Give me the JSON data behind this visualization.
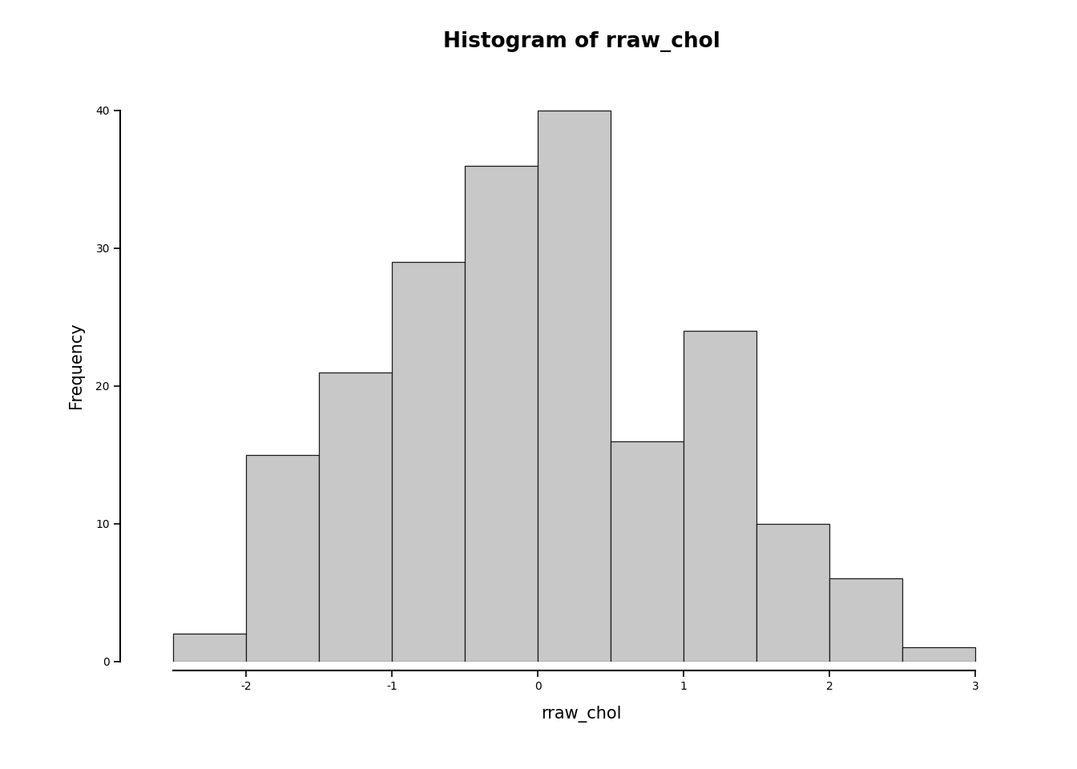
{
  "title": "Histogram of rraw_chol",
  "xlabel": "rraw_chol",
  "ylabel": "Frequency",
  "bar_edges": [
    -2.5,
    -2.0,
    -1.5,
    -1.0,
    -0.5,
    0.0,
    0.5,
    1.0,
    1.5,
    2.0,
    2.5,
    3.0
  ],
  "bar_heights": [
    2,
    15,
    21,
    29,
    36,
    40,
    16,
    24,
    10,
    6,
    1
  ],
  "bar_color": "#c8c8c8",
  "bar_edgecolor": "#1a1a1a",
  "xlim": [
    -2.8,
    3.4
  ],
  "ylim": [
    0,
    43
  ],
  "xticks": [
    -2,
    -1,
    0,
    1,
    2,
    3
  ],
  "yticks": [
    0,
    10,
    20,
    30,
    40
  ],
  "title_fontsize": 19,
  "title_fontweight": "bold",
  "label_fontsize": 15,
  "tick_fontsize": 14,
  "background_color": "#ffffff",
  "spine_linewidth": 1.5
}
